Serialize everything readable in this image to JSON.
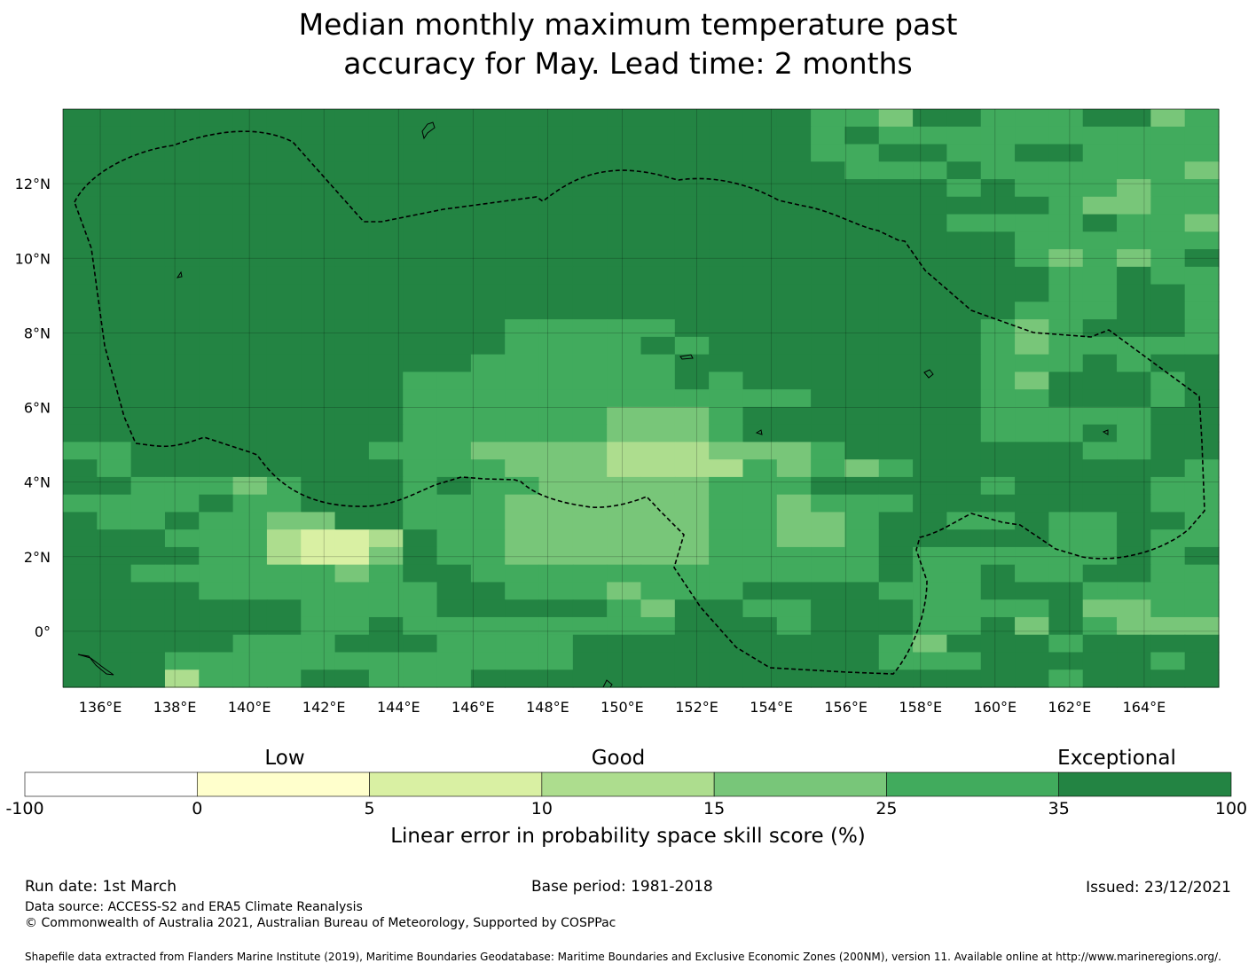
{
  "title_line1": "Median monthly maximum temperature past",
  "title_line2": "accuracy for May. Lead time: 2 months",
  "map": {
    "lon_range": [
      135,
      166
    ],
    "lat_range": [
      -1.5,
      14
    ],
    "lon_ticks": [
      136,
      138,
      140,
      142,
      144,
      146,
      148,
      150,
      152,
      154,
      156,
      158,
      160,
      162,
      164
    ],
    "lon_tick_labels": [
      "136°E",
      "138°E",
      "140°E",
      "142°E",
      "144°E",
      "146°E",
      "148°E",
      "150°E",
      "152°E",
      "154°E",
      "156°E",
      "158°E",
      "160°E",
      "162°E",
      "164°E"
    ],
    "lat_ticks": [
      12,
      10,
      8,
      6,
      4,
      2,
      0
    ],
    "lat_tick_labels": [
      "12°N",
      "10°N",
      "8°N",
      "6°N",
      "4°N",
      "2°N",
      "0°"
    ],
    "grid_rows_description": "Skill category per grid cell, rows from north to south, 6=35-100, 5=25-35, 4=15-25, 3=10-15, 2=5-10",
    "grid_rows": [
      "6666666666666666666666554665556645",
      "6666666666666666666666565555555555",
      "6666666666666666666666556655665555",
      "6666666666666666666666655565555554",
      "6666666666666666666666666656555455",
      "6666666666666666666666666666654455",
      "6666666666666666666666666655556554",
      "6666666666666666666666666666555555",
      "6666666666666666666666666666545456",
      "6666666666666666666666666666655655",
      "6666666666666666666666666666655665",
      "6666666666666666666666666666555665",
      "6666666666666555556666666665456665",
      "6666666666666555565666666665455555",
      "6666666666665555556666666665556566",
      "6666666666555555556566666665466656",
      "6666666666555555555555666665566656",
      "6666666666555555444566666665555566",
      "6666666666555555444566666665556566",
      "5566666665554444333444566666665566",
      "6566666666555444333354545666666665",
      "6655545666565544444555666665666655",
      "5555655666555444444554555666666655",
      "6556554466555444444554456655655665",
      "6665553223655444444554456666655655",
      "6666553224655444444555556555555656",
      "6655555545665555555555556556556655",
      "6666555555566555455566665556665555",
      "6666666555566666546655666555564455",
      "6666666556555555556665666556465444",
      "6666655566655556666666665466656666",
      "6665555555555556666666665556666656",
      "6663555665556666666666666666656666"
    ]
  },
  "categories": {
    "low": "Low",
    "good": "Good",
    "exceptional": "Exceptional"
  },
  "colorbar": {
    "colors": [
      "#ffffff",
      "#ffffcc",
      "#d9f0a3",
      "#addd8e",
      "#78c679",
      "#41ab5d",
      "#238443"
    ],
    "tick_labels": [
      "-100",
      "0",
      "5",
      "10",
      "15",
      "25",
      "35",
      "100"
    ]
  },
  "colorbar_caption": "Linear error in probability space skill score (%)",
  "footer": {
    "run_date": "Run date: 1st March",
    "base_period": "Base period: 1981-2018",
    "issued": "Issued: 23/12/2021",
    "data_source": "Data source: ACCESS-S2 and ERA5 Climate Reanalysis",
    "copyright": "© Commonwealth of Australia 2021, Australian Bureau of Meteorology, Supported by COSPPac",
    "shapefile": "Shapefile data extracted from Flanders Marine Institute (2019), Maritime Boundaries Geodatabase: Maritime Boundaries and Exclusive Economic Zones (200NM), version 11. Available online at http://www.marineregions.org/."
  }
}
